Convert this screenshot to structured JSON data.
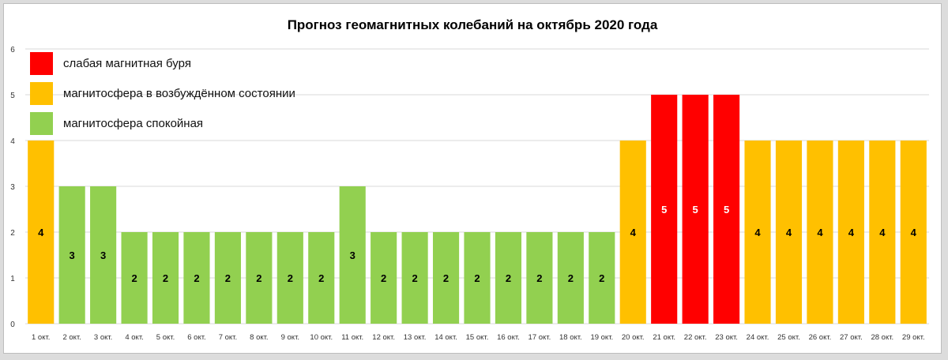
{
  "title": "Прогноз геомагнитных колебаний на октябрь 2020 года",
  "legend": [
    {
      "label": "слабая магнитная буря",
      "color": "#ff0000"
    },
    {
      "label": "магнитосфера в возбуждённом состоянии",
      "color": "#ffc000"
    },
    {
      "label": "магнитосфера спокойная",
      "color": "#92d050"
    }
  ],
  "colors": {
    "storm": "#ff0000",
    "excited": "#ffc000",
    "calm": "#92d050",
    "grid": "#d9d9d9"
  },
  "chart_data": {
    "type": "bar",
    "categories": [
      "1 окт.",
      "2 окт.",
      "3 окт.",
      "4 окт.",
      "5 окт.",
      "6 окт.",
      "7 окт.",
      "8 окт.",
      "9 окт.",
      "10 окт.",
      "11 окт.",
      "12 окт.",
      "13 окт.",
      "14 окт.",
      "15 окт.",
      "16 окт.",
      "17 окт.",
      "18 окт.",
      "19 окт.",
      "20 окт.",
      "21 окт.",
      "22 окт.",
      "23 окт.",
      "24 окт.",
      "25 окт.",
      "26 окт.",
      "27 окт.",
      "28 окт.",
      "29 окт."
    ],
    "values": [
      4,
      3,
      3,
      2,
      2,
      2,
      2,
      2,
      2,
      2,
      3,
      2,
      2,
      2,
      2,
      2,
      2,
      2,
      2,
      4,
      5,
      5,
      5,
      4,
      4,
      4,
      4,
      4,
      4
    ],
    "yticks": [
      "0",
      "1",
      "2",
      "3",
      "4",
      "5",
      "6"
    ],
    "ylim": [
      0,
      6
    ],
    "grid": true,
    "legend_position": "top-left"
  }
}
